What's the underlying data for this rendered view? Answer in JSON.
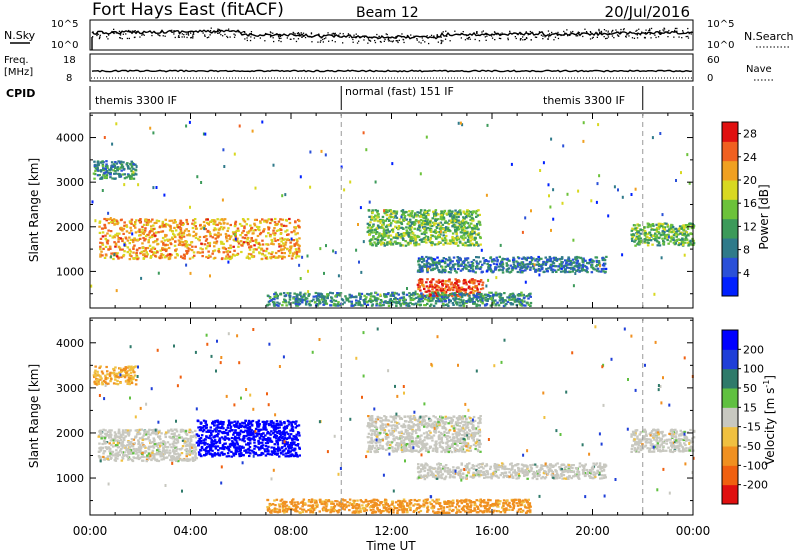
{
  "header": {
    "station": "Fort Hays East (fitACF)",
    "beam": "Beam 12",
    "date": "20/Jul/2016"
  },
  "noise_panel": {
    "left_label": "N.Sky",
    "right_label": "N.Search",
    "left_ticks": [
      "10^5",
      "10^0"
    ],
    "right_ticks": [
      "10^5",
      "10^0"
    ]
  },
  "freq_panel": {
    "left_label_1": "Freq.",
    "left_label_2": "[MHz]",
    "right_label": "Nave",
    "left_ticks": [
      "18",
      "8"
    ],
    "right_ticks": [
      "60",
      "0"
    ]
  },
  "cpid_panel": {
    "label": "CPID",
    "segments": [
      {
        "text": "themis 3300 IF",
        "start_hour": 0
      },
      {
        "text": "normal (fast) 151 IF",
        "start_hour": 10
      },
      {
        "text": "themis 3300 IF",
        "start_hour": 22
      }
    ],
    "segment_boundaries_hours": [
      10,
      22
    ]
  },
  "colors": {
    "power": [
      "#0020ff",
      "#2a50d8",
      "#2f7a8a",
      "#3c9a5a",
      "#6cc23a",
      "#d8d820",
      "#f0a020",
      "#f06020",
      "#e01010"
    ],
    "velocity": [
      "#0000ff",
      "#1f3fd8",
      "#2f7a6a",
      "#60c040",
      "#c8c8c0",
      "#f0c040",
      "#f09020",
      "#f06010",
      "#e01010"
    ]
  },
  "chart_data": [
    {
      "type": "heatmap",
      "title": "Power",
      "xlabel": "",
      "ylabel": "Slant Range [km]",
      "x_unit": "hours UT",
      "xlim": [
        0,
        24
      ],
      "ylim": [
        180,
        4550
      ],
      "yticks": [
        1000,
        2000,
        3000,
        4000
      ],
      "colorbar": {
        "label": "Power [dB]",
        "range": [
          0,
          30
        ],
        "ticks": [
          4,
          8,
          12,
          16,
          20,
          24,
          28
        ]
      },
      "features": [
        {
          "name": "ionospheric band",
          "x": [
            0.3,
            8.3
          ],
          "y": [
            1300,
            2200
          ],
          "value": 22
        },
        {
          "name": "upper echoes",
          "x": [
            0.1,
            1.8
          ],
          "y": [
            3100,
            3500
          ],
          "value": 10
        },
        {
          "name": "descending band",
          "x": [
            11.0,
            15.5
          ],
          "y": [
            1600,
            2400
          ],
          "value": 14
        },
        {
          "name": "band 1000-1300 km",
          "x": [
            13.0,
            20.5
          ],
          "y": [
            1000,
            1350
          ],
          "value": 8
        },
        {
          "name": "strong patch",
          "x": [
            13.0,
            15.6
          ],
          "y": [
            450,
            850
          ],
          "value": 26
        },
        {
          "name": "near range",
          "x": [
            7.0,
            17.5
          ],
          "y": [
            250,
            550
          ],
          "value": 10
        },
        {
          "name": "evening echoes",
          "x": [
            21.5,
            24.0
          ],
          "y": [
            1600,
            2100
          ],
          "value": 14
        }
      ]
    },
    {
      "type": "heatmap",
      "title": "Velocity",
      "xlabel": "Time UT",
      "ylabel": "Slant Range [km]",
      "x_unit": "hours UT",
      "xlim": [
        0,
        24
      ],
      "ylim": [
        180,
        4550
      ],
      "yticks": [
        1000,
        2000,
        3000,
        4000
      ],
      "xticks": [
        "00:00",
        "04:00",
        "08:00",
        "12:00",
        "16:00",
        "20:00",
        "00:00"
      ],
      "colorbar": {
        "label": "Velocity [m s^-1]",
        "ticks": [
          200,
          100,
          50,
          15,
          -15,
          -50,
          -100,
          -200
        ]
      },
      "features": [
        {
          "name": "ground scatter band",
          "x": [
            0.3,
            4.2
          ],
          "y": [
            1400,
            2100
          ],
          "value": 0
        },
        {
          "name": "high velocity patch",
          "x": [
            4.2,
            8.3
          ],
          "y": [
            1500,
            2300
          ],
          "value": 220
        },
        {
          "name": "upper echoes",
          "x": [
            0.1,
            1.8
          ],
          "y": [
            3100,
            3500
          ],
          "value": -50
        },
        {
          "name": "descending band",
          "x": [
            11.0,
            15.5
          ],
          "y": [
            1600,
            2400
          ],
          "value": 0
        },
        {
          "name": "band 1000-1300 km",
          "x": [
            13.0,
            20.5
          ],
          "y": [
            1000,
            1350
          ],
          "value": 0
        },
        {
          "name": "near range",
          "x": [
            7.0,
            17.5
          ],
          "y": [
            250,
            550
          ],
          "value": -60
        },
        {
          "name": "evening echoes",
          "x": [
            21.5,
            24.0
          ],
          "y": [
            1600,
            2100
          ],
          "value": 0
        }
      ]
    }
  ]
}
